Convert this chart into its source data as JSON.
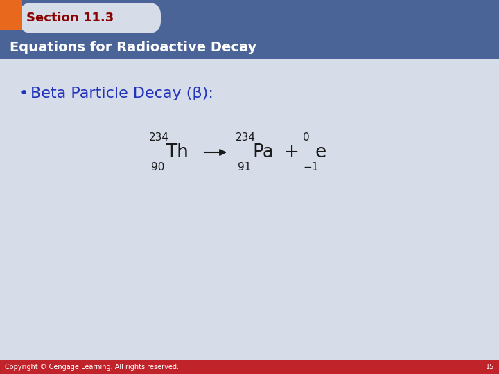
{
  "bg_color": "#d6dce8",
  "header_tab_color": "#e8691e",
  "header_tab_text": "Section 11.3",
  "header_tab_text_color": "#8b0000",
  "header_bar_color": "#4a6497",
  "header_bar_text": "Equations for Radioactive Decay",
  "header_bar_text_color": "#ffffff",
  "bullet_text": "Beta Particle Decay (β):",
  "bullet_text_color": "#2233bb",
  "footer_color": "#c0242a",
  "footer_text": "Copyright © Cengage Learning. All rights reserved.",
  "footer_page": "15",
  "footer_text_color": "#ffffff",
  "equation_color": "#1a1a1a"
}
